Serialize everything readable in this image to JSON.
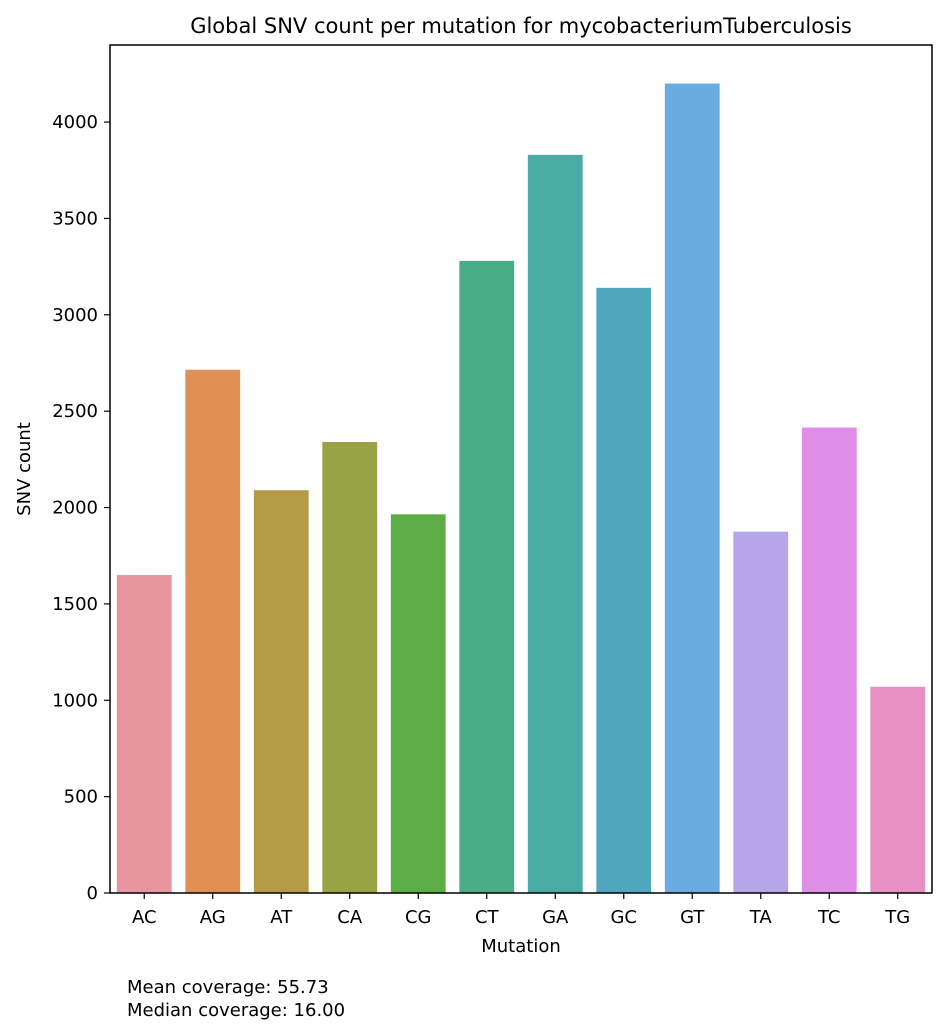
{
  "chart_data": {
    "type": "bar",
    "title": "Global SNV count per mutation for mycobacteriumTuberculosis",
    "xlabel": "Mutation",
    "ylabel": "SNV count",
    "categories": [
      "AC",
      "AG",
      "AT",
      "CA",
      "CG",
      "CT",
      "GA",
      "GC",
      "GT",
      "TA",
      "TC",
      "TG"
    ],
    "values": [
      1650,
      2715,
      2090,
      2340,
      1965,
      3280,
      3830,
      3140,
      4200,
      1875,
      2415,
      1070
    ],
    "colors": [
      "#e8959f",
      "#e09052",
      "#b69b47",
      "#98a346",
      "#5eae48",
      "#49ae87",
      "#4aaaa4",
      "#4ea7bd",
      "#6aace1",
      "#b7a5ea",
      "#df8de6",
      "#e88fc4"
    ],
    "ylim": [
      0,
      4400
    ],
    "yticks": [
      0,
      500,
      1000,
      1500,
      2000,
      2500,
      3000,
      3500,
      4000
    ],
    "grid": false,
    "legend": "none"
  },
  "annotations": {
    "mean_coverage": "Mean coverage: 55.73",
    "median_coverage": "Median coverage: 16.00"
  }
}
